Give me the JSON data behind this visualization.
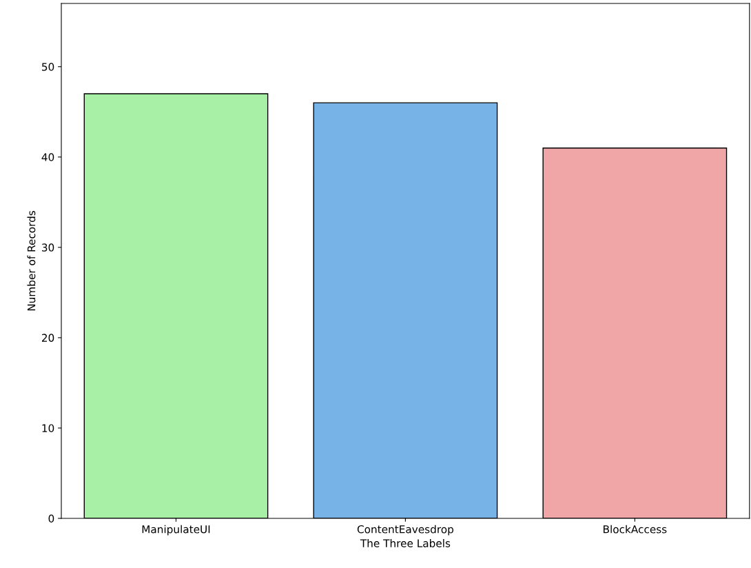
{
  "chart_data": {
    "type": "bar",
    "xlabel": "The Three Labels",
    "ylabel": "Number of Records",
    "categories": [
      "ManipulateUI",
      "ContentEavesdrop",
      "BlockAccess"
    ],
    "values": [
      47,
      46,
      41
    ],
    "colors": [
      "#a8f0a6",
      "#78b3e8",
      "#f0a6a6"
    ],
    "ylim": [
      0,
      57
    ],
    "yticks": [
      0,
      10,
      20,
      30,
      40,
      50
    ],
    "grid": false
  }
}
